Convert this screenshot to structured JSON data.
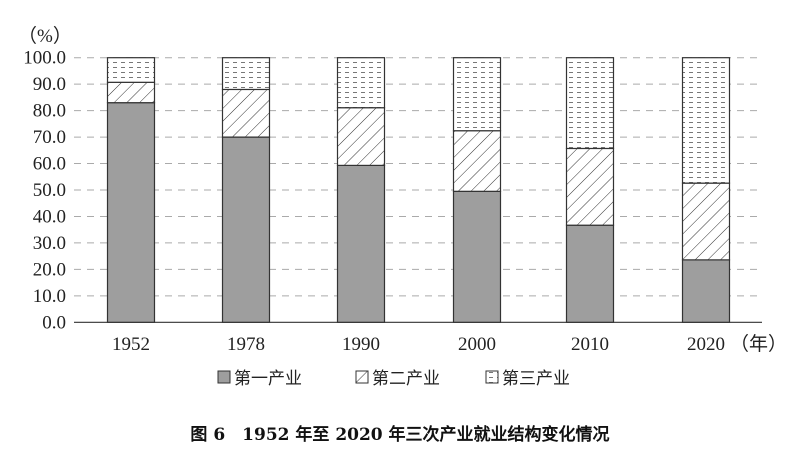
{
  "chart_data": {
    "type": "bar",
    "stacked": true,
    "title": "图 6　1952 年至 2020 年三次产业就业结构变化情况",
    "ylabel": "（%）",
    "xlabel": "（年）",
    "ylim": [
      0,
      100
    ],
    "yticks": [
      "0.0",
      "10.0",
      "20.0",
      "30.0",
      "40.0",
      "50.0",
      "60.0",
      "70.0",
      "80.0",
      "90.0",
      "100.0"
    ],
    "grid": true,
    "legend_position": "bottom",
    "categories": [
      "1952",
      "1978",
      "1990",
      "2000",
      "2010",
      "2020"
    ],
    "series": [
      {
        "name": "第一产业",
        "pattern": "solid-gray",
        "color": "#9e9e9e",
        "values": [
          83.0,
          70.0,
          59.3,
          49.5,
          36.7,
          23.6
        ]
      },
      {
        "name": "第二产业",
        "pattern": "diagonal-hatch",
        "color": "#ffffff",
        "values": [
          7.7,
          18.0,
          21.8,
          22.9,
          29.0,
          29.0
        ]
      },
      {
        "name": "第三产业",
        "pattern": "dashed-dots",
        "color": "#ffffff",
        "values": [
          9.3,
          12.0,
          18.9,
          27.6,
          34.3,
          47.4
        ]
      }
    ]
  }
}
